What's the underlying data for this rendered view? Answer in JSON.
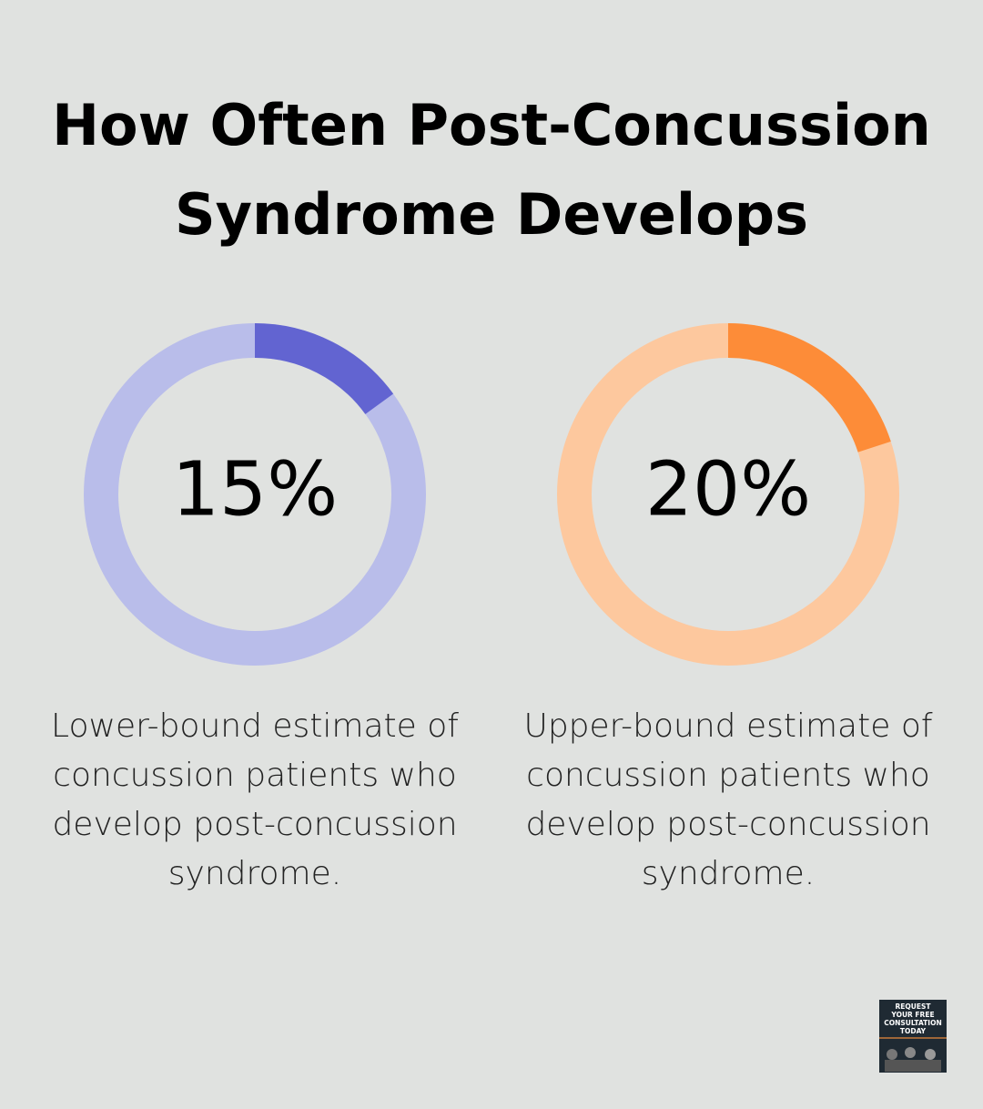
{
  "title": [
    "How Often Post-Concussion",
    "Syndrome Develops"
  ],
  "chart_data": [
    {
      "type": "donut",
      "values": [
        15
      ],
      "value_labels": [
        "15%"
      ],
      "color": "#6264d1",
      "track_color": "#b9bdea",
      "caption": [
        "Lower-bound estimate of",
        "concussion patients who",
        "develop post-concussion",
        "syndrome."
      ]
    },
    {
      "type": "donut",
      "values": [
        20
      ],
      "value_labels": [
        "20%"
      ],
      "color": "#fd8c38",
      "track_color": "#fdc89e",
      "caption": [
        "Upper-bound estimate of",
        "concussion patients who",
        "develop post-concussion",
        "syndrome."
      ]
    }
  ],
  "badge": {
    "lines": [
      "REQUEST",
      "YOUR FREE",
      "CONSULTATION",
      "TODAY"
    ]
  }
}
